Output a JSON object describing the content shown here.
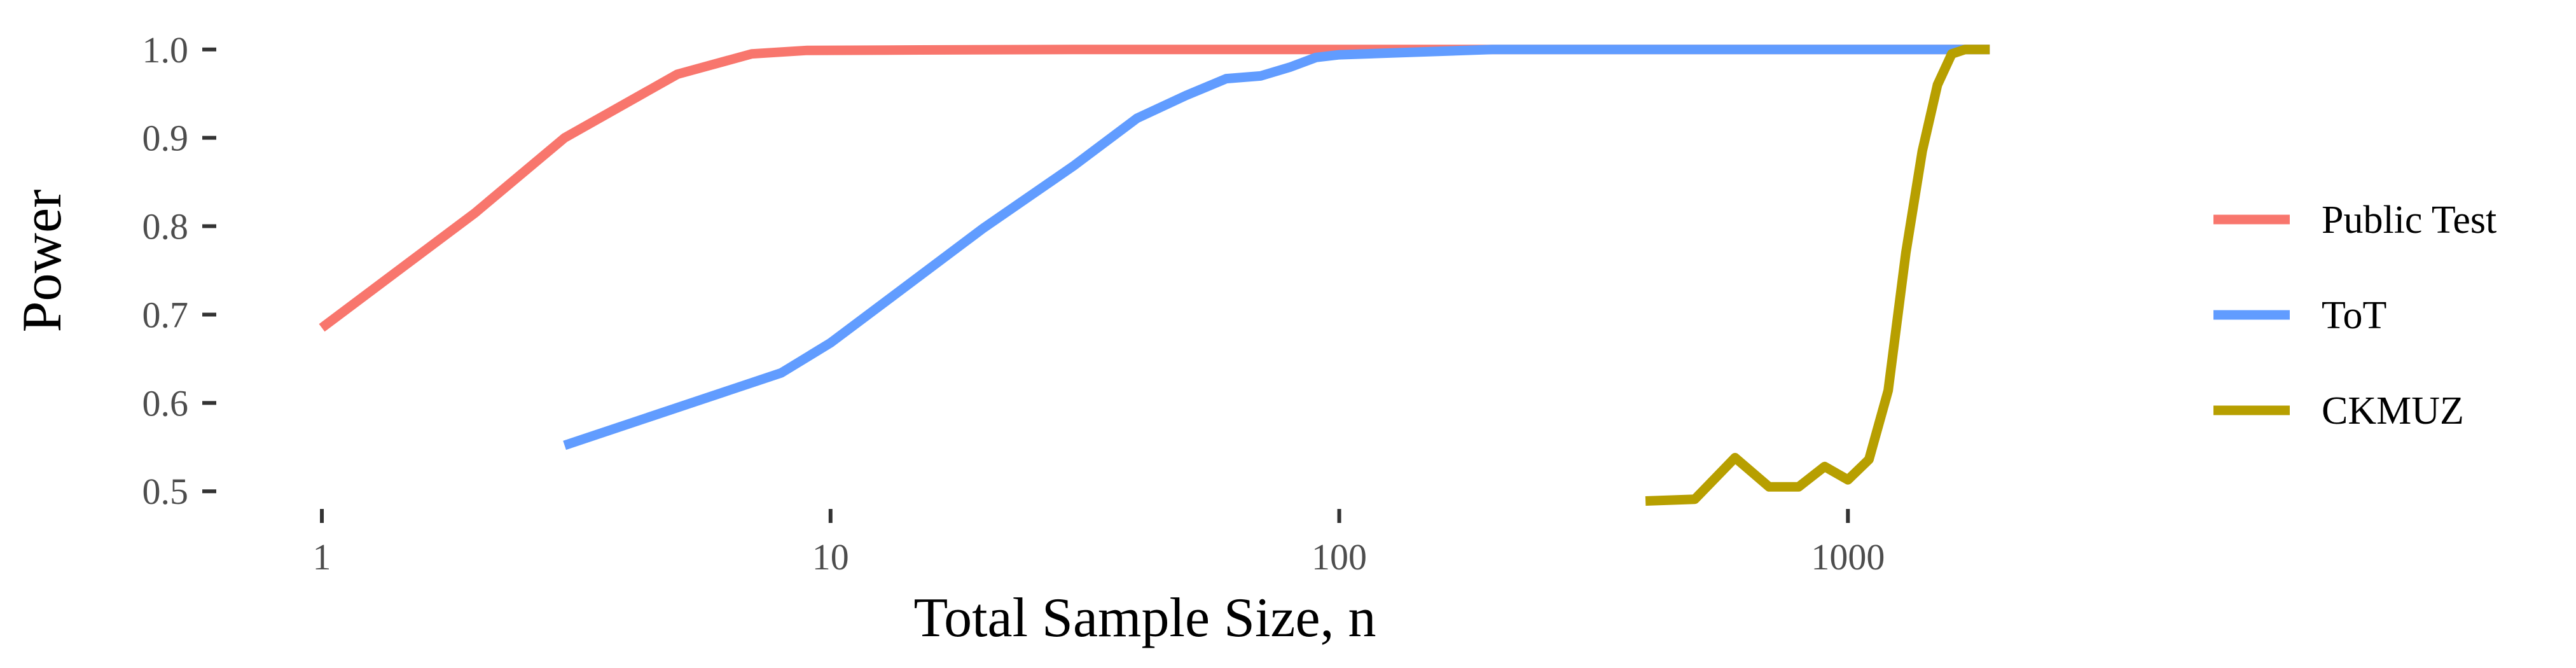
{
  "chart_data": {
    "type": "line",
    "title": "",
    "xlabel": "Total Sample Size, n",
    "ylabel": "Power",
    "x_scale": "log10",
    "xlim": [
      0.62,
      3300
    ],
    "ylim": [
      0.48,
      1.02
    ],
    "grid": false,
    "legend_position": "right",
    "x_ticks": [
      {
        "value": 1,
        "label": "1"
      },
      {
        "value": 10,
        "label": "10"
      },
      {
        "value": 100,
        "label": "100"
      },
      {
        "value": 1000,
        "label": "1000"
      }
    ],
    "y_ticks": [
      {
        "value": 0.5,
        "label": "0.5"
      },
      {
        "value": 0.6,
        "label": "0.6"
      },
      {
        "value": 0.7,
        "label": "0.7"
      },
      {
        "value": 0.8,
        "label": "0.8"
      },
      {
        "value": 0.9,
        "label": "0.9"
      },
      {
        "value": 1.0,
        "label": "1.0"
      }
    ],
    "series": [
      {
        "name": "Public Test",
        "color": "#F8766D",
        "points": [
          [
            1,
            0.685
          ],
          [
            2,
            0.815
          ],
          [
            3,
            0.9
          ],
          [
            5,
            0.972
          ],
          [
            7,
            0.995
          ],
          [
            9,
            0.999
          ],
          [
            15,
            0.9995
          ],
          [
            30,
            1.0
          ],
          [
            100,
            1.0
          ],
          [
            500,
            1.0
          ],
          [
            1000,
            1.0
          ],
          [
            1900,
            1.0
          ]
        ]
      },
      {
        "name": "ToT",
        "color": "#619CFF",
        "points": [
          [
            3,
            0.552
          ],
          [
            8,
            0.634
          ],
          [
            10,
            0.668
          ],
          [
            20,
            0.798
          ],
          [
            30,
            0.868
          ],
          [
            40,
            0.922
          ],
          [
            50,
            0.948
          ],
          [
            60,
            0.967
          ],
          [
            70,
            0.97
          ],
          [
            80,
            0.98
          ],
          [
            90,
            0.991
          ],
          [
            100,
            0.994
          ],
          [
            200,
            1.0
          ],
          [
            500,
            1.0
          ],
          [
            1000,
            1.0
          ],
          [
            1900,
            1.0
          ]
        ]
      },
      {
        "name": "CKMUZ",
        "color": "#B79F00",
        "points": [
          [
            400,
            0.489
          ],
          [
            500,
            0.491
          ],
          [
            600,
            0.538
          ],
          [
            700,
            0.505
          ],
          [
            800,
            0.505
          ],
          [
            900,
            0.528
          ],
          [
            1000,
            0.513
          ],
          [
            1100,
            0.536
          ],
          [
            1200,
            0.614
          ],
          [
            1300,
            0.77
          ],
          [
            1400,
            0.885
          ],
          [
            1500,
            0.96
          ],
          [
            1600,
            0.995
          ],
          [
            1700,
            1.0
          ],
          [
            1900,
            1.0
          ]
        ]
      }
    ]
  }
}
